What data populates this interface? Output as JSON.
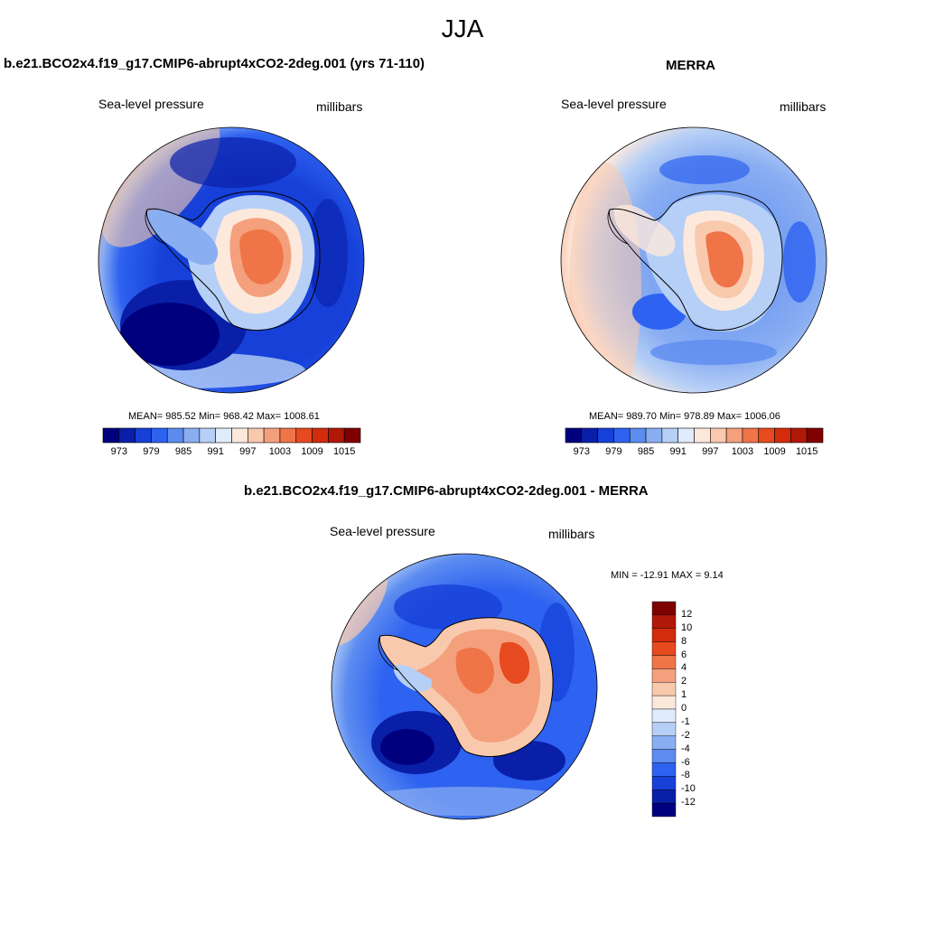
{
  "figure": {
    "title": "JJA",
    "panels": [
      {
        "title": "b.e21.BCO2x4.f19_g17.CMIP6-abrupt4xCO2-2deg.001 (yrs 71-110)",
        "variable": "Sea-level pressure",
        "units": "millibars",
        "stats": "MEAN= 985.52  Min= 968.42  Max= 1008.61",
        "colorbar_ticks": [
          "973",
          "979",
          "985",
          "991",
          "997",
          "1003",
          "1009",
          "1015"
        ]
      },
      {
        "title": "MERRA",
        "variable": "Sea-level pressure",
        "units": "millibars",
        "stats": "MEAN= 989.70  Min= 978.89  Max= 1006.06",
        "colorbar_ticks": [
          "973",
          "979",
          "985",
          "991",
          "997",
          "1003",
          "1009",
          "1015"
        ]
      },
      {
        "title": "b.e21.BCO2x4.f19_g17.CMIP6-abrupt4xCO2-2deg.001 - MERRA",
        "variable": "Sea-level pressure",
        "units": "millibars",
        "stats": "MIN = -12.91 MAX =   9.14",
        "colorbar_ticks": [
          "12",
          "10",
          "8",
          "6",
          "4",
          "2",
          "1",
          "0",
          "-1",
          "-2",
          "-4",
          "-6",
          "-8",
          "-10",
          "-12"
        ]
      }
    ]
  },
  "colors": {
    "abs_scale": [
      "#00007f",
      "#0a1fa8",
      "#1640d8",
      "#2e62f0",
      "#5c8cf0",
      "#8aaef2",
      "#b6cff6",
      "#e0ecfb",
      "#fde9dc",
      "#f9c9ae",
      "#f4a07c",
      "#ef7448",
      "#e74a1e",
      "#d22c0c",
      "#b01808",
      "#7f0000"
    ],
    "diff_scale": [
      "#7f0000",
      "#b01808",
      "#d22c0c",
      "#e74a1e",
      "#ef7448",
      "#f4a07c",
      "#f9c9ae",
      "#fde9dc",
      "#e0ecfb",
      "#b6cff6",
      "#8aaef2",
      "#5c8cf0",
      "#2e62f0",
      "#1640d8",
      "#0a1fa8",
      "#00007f"
    ]
  }
}
